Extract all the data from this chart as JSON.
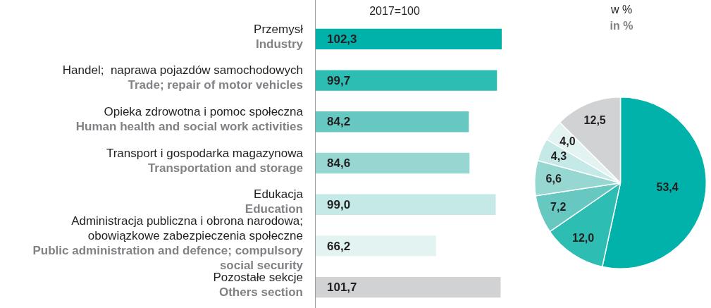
{
  "chart_data": [
    {
      "type": "bar",
      "orientation": "horizontal",
      "title": "2017=100",
      "categories": [
        "Przemysł\nIndustry",
        "Handel;  naprawa pojazdów samochodowych\nTrade; repair of motor vehicles",
        "Opieka zdrowotna i pomoc społeczna\nHuman health and social work activities",
        "Transport i gospodarka magazynowa\nTransportation and storage",
        "Edukacja\nEducation",
        "Administracja publiczna i obrona narodowa;\nobowiązkowe zabezpieczenia społeczne\nPublic administration and defence; compulsory\nsocial security",
        "Pozostałe sekcje\nOthers section"
      ],
      "values": [
        102.3,
        99.7,
        84.2,
        84.6,
        99.0,
        66.2,
        101.7
      ],
      "value_labels": [
        "102,3",
        "99,7",
        "84,2",
        "84,6",
        "99,0",
        "66,2",
        "101,7"
      ],
      "colors": [
        "#00b2a9",
        "#2dbdb2",
        "#66c8c0",
        "#96d7d2",
        "#c5e9e6",
        "#e3f3f2",
        "#d1d2d4"
      ]
    },
    {
      "type": "pie",
      "title": "w %",
      "subtitle": "in %",
      "categories": [
        null,
        null,
        null,
        null,
        null,
        null,
        null
      ],
      "values": [
        53.4,
        12.0,
        7.2,
        6.6,
        4.3,
        4.0,
        12.5
      ],
      "value_labels": [
        "53,4",
        "12,0",
        "7,2",
        "6,6",
        "4,3",
        "4,0",
        "12,5"
      ],
      "colors": [
        "#00b2a9",
        "#2dbdb2",
        "#66c8c0",
        "#96d7d2",
        "#c5e9e6",
        "#e3f3f2",
        "#d1d2d4"
      ]
    }
  ]
}
